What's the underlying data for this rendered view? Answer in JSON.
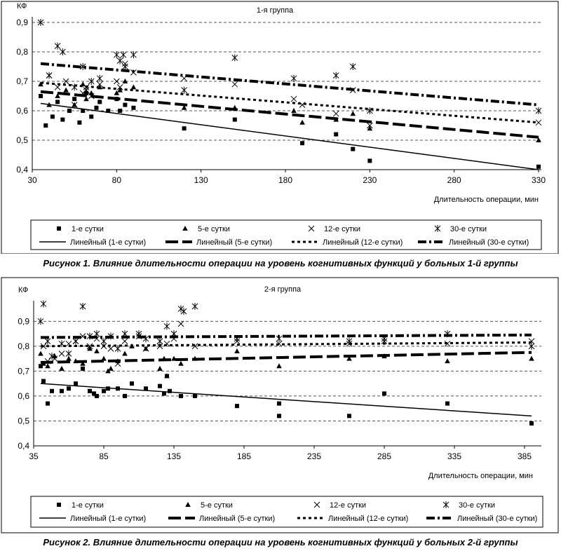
{
  "figures": [
    {
      "caption": "Рисунок 1. Влияние длительности операции на уровень когнитивных функций у больных 1-й группы"
    },
    {
      "caption": "Рисунок 2. Влияние длительности операции на уровень когнитивных функций у больных 2-й группы"
    }
  ],
  "chart_data": [
    {
      "type": "scatter",
      "title": "1-я группа",
      "ylabel": "КФ",
      "xlabel": "Длительность операции, мин",
      "xlim": [
        30,
        330
      ],
      "ylim": [
        0.4,
        0.9
      ],
      "xticks": [
        "30",
        "80",
        "130",
        "180",
        "230",
        "280",
        "330"
      ],
      "yticks": [
        "0,4",
        "0,5",
        "0,6",
        "0,7",
        "0,8",
        "0,9"
      ],
      "grid": "horizontal-dashed",
      "legend_position": "bottom",
      "series": [
        {
          "name": "1-е сутки",
          "marker": "square",
          "points": [
            [
              35,
              0.65
            ],
            [
              38,
              0.55
            ],
            [
              42,
              0.58
            ],
            [
              45,
              0.63
            ],
            [
              48,
              0.57
            ],
            [
              52,
              0.6
            ],
            [
              55,
              0.64
            ],
            [
              58,
              0.56
            ],
            [
              60,
              0.6
            ],
            [
              62,
              0.66
            ],
            [
              65,
              0.58
            ],
            [
              68,
              0.61
            ],
            [
              70,
              0.63
            ],
            [
              75,
              0.6
            ],
            [
              80,
              0.64
            ],
            [
              82,
              0.6
            ],
            [
              85,
              0.62
            ],
            [
              90,
              0.61
            ],
            [
              120,
              0.54
            ],
            [
              150,
              0.57
            ],
            [
              190,
              0.49
            ],
            [
              210,
              0.52
            ],
            [
              220,
              0.47
            ],
            [
              230,
              0.43
            ],
            [
              330,
              0.41
            ]
          ]
        },
        {
          "name": "5-е сутки",
          "marker": "triangle",
          "points": [
            [
              35,
              0.69
            ],
            [
              40,
              0.62
            ],
            [
              45,
              0.65
            ],
            [
              50,
              0.67
            ],
            [
              55,
              0.62
            ],
            [
              60,
              0.69
            ],
            [
              62,
              0.64
            ],
            [
              65,
              0.66
            ],
            [
              70,
              0.68
            ],
            [
              80,
              0.66
            ],
            [
              82,
              0.67
            ],
            [
              85,
              0.7
            ],
            [
              90,
              0.68
            ],
            [
              120,
              0.61
            ],
            [
              150,
              0.61
            ],
            [
              185,
              0.6
            ],
            [
              190,
              0.56
            ],
            [
              210,
              0.57
            ],
            [
              220,
              0.59
            ],
            [
              230,
              0.54
            ],
            [
              330,
              0.5
            ]
          ]
        },
        {
          "name": "12-е сутки",
          "marker": "x",
          "points": [
            [
              40,
              0.72
            ],
            [
              45,
              0.68
            ],
            [
              50,
              0.7
            ],
            [
              55,
              0.62
            ],
            [
              60,
              0.66
            ],
            [
              62,
              0.68
            ],
            [
              65,
              0.65
            ],
            [
              70,
              0.69
            ],
            [
              80,
              0.7
            ],
            [
              82,
              0.68
            ],
            [
              85,
              0.76
            ],
            [
              90,
              0.73
            ],
            [
              120,
              0.71
            ],
            [
              150,
              0.69
            ],
            [
              185,
              0.64
            ],
            [
              190,
              0.62
            ],
            [
              210,
              0.59
            ],
            [
              220,
              0.67
            ],
            [
              230,
              0.55
            ],
            [
              330,
              0.56
            ]
          ]
        },
        {
          "name": "30-е сутки",
          "marker": "asterisk",
          "points": [
            [
              35,
              0.9
            ],
            [
              40,
              0.72
            ],
            [
              45,
              0.82
            ],
            [
              48,
              0.8
            ],
            [
              55,
              0.68
            ],
            [
              60,
              0.75
            ],
            [
              62,
              0.67
            ],
            [
              65,
              0.7
            ],
            [
              70,
              0.71
            ],
            [
              80,
              0.79
            ],
            [
              82,
              0.77
            ],
            [
              84,
              0.79
            ],
            [
              85,
              0.75
            ],
            [
              90,
              0.79
            ],
            [
              120,
              0.67
            ],
            [
              150,
              0.78
            ],
            [
              185,
              0.71
            ],
            [
              210,
              0.72
            ],
            [
              220,
              0.75
            ],
            [
              230,
              0.6
            ],
            [
              330,
              0.6
            ]
          ]
        }
      ],
      "trendlines": [
        {
          "name": "Линейный (1-е сутки)",
          "style": "solid",
          "from": [
            35,
            0.625
          ],
          "to": [
            330,
            0.4
          ]
        },
        {
          "name": "Линейный (5-е сутки)",
          "style": "long-dash",
          "from": [
            35,
            0.665
          ],
          "to": [
            330,
            0.51
          ]
        },
        {
          "name": "Линейный (12-е сутки)",
          "style": "dotted",
          "from": [
            35,
            0.695
          ],
          "to": [
            330,
            0.56
          ]
        },
        {
          "name": "Линейный (30-е сутки)",
          "style": "dash-dot",
          "from": [
            35,
            0.76
          ],
          "to": [
            330,
            0.62
          ]
        }
      ]
    },
    {
      "type": "scatter",
      "title": "2-я группа",
      "ylabel": "КФ",
      "xlabel": "Длительность операции, мин",
      "xlim": [
        35,
        395
      ],
      "ylim": [
        0.4,
        0.96
      ],
      "xticks": [
        "35",
        "85",
        "135",
        "185",
        "235",
        "285",
        "335",
        "385"
      ],
      "yticks": [
        "0,4",
        "0,5",
        "0,6",
        "0,7",
        "0,8",
        "0,9"
      ],
      "grid": "horizontal-dashed",
      "legend_position": "bottom",
      "series": [
        {
          "name": "1-е сутки",
          "marker": "square",
          "points": [
            [
              40,
              0.72
            ],
            [
              42,
              0.66
            ],
            [
              45,
              0.57
            ],
            [
              48,
              0.62
            ],
            [
              55,
              0.62
            ],
            [
              60,
              0.63
            ],
            [
              65,
              0.65
            ],
            [
              70,
              0.71
            ],
            [
              75,
              0.62
            ],
            [
              78,
              0.61
            ],
            [
              80,
              0.6
            ],
            [
              85,
              0.62
            ],
            [
              88,
              0.63
            ],
            [
              95,
              0.63
            ],
            [
              100,
              0.6
            ],
            [
              105,
              0.65
            ],
            [
              115,
              0.63
            ],
            [
              125,
              0.64
            ],
            [
              128,
              0.61
            ],
            [
              130,
              0.68
            ],
            [
              132,
              0.62
            ],
            [
              140,
              0.6
            ],
            [
              150,
              0.6
            ],
            [
              180,
              0.56
            ],
            [
              210,
              0.57
            ],
            [
              210,
              0.52
            ],
            [
              260,
              0.52
            ],
            [
              285,
              0.61
            ],
            [
              330,
              0.57
            ],
            [
              390,
              0.49
            ]
          ]
        },
        {
          "name": "5-е сутки",
          "marker": "triangle",
          "points": [
            [
              40,
              0.77
            ],
            [
              42,
              0.73
            ],
            [
              45,
              0.72
            ],
            [
              50,
              0.76
            ],
            [
              55,
              0.71
            ],
            [
              60,
              0.75
            ],
            [
              65,
              0.74
            ],
            [
              70,
              0.73
            ],
            [
              75,
              0.79
            ],
            [
              80,
              0.78
            ],
            [
              85,
              0.75
            ],
            [
              88,
              0.7
            ],
            [
              90,
              0.71
            ],
            [
              95,
              0.74
            ],
            [
              100,
              0.77
            ],
            [
              105,
              0.8
            ],
            [
              115,
              0.79
            ],
            [
              125,
              0.71
            ],
            [
              128,
              0.75
            ],
            [
              130,
              0.68
            ],
            [
              135,
              0.75
            ],
            [
              140,
              0.73
            ],
            [
              150,
              0.75
            ],
            [
              180,
              0.78
            ],
            [
              210,
              0.72
            ],
            [
              260,
              0.75
            ],
            [
              285,
              0.76
            ],
            [
              330,
              0.74
            ],
            [
              390,
              0.75
            ]
          ]
        },
        {
          "name": "12-е сутки",
          "marker": "x",
          "points": [
            [
              42,
              0.8
            ],
            [
              45,
              0.74
            ],
            [
              50,
              0.75
            ],
            [
              55,
              0.77
            ],
            [
              60,
              0.81
            ],
            [
              65,
              0.82
            ],
            [
              70,
              0.84
            ],
            [
              75,
              0.8
            ],
            [
              80,
              0.83
            ],
            [
              85,
              0.8
            ],
            [
              90,
              0.79
            ],
            [
              95,
              0.73
            ],
            [
              100,
              0.82
            ],
            [
              110,
              0.84
            ],
            [
              115,
              0.79
            ],
            [
              125,
              0.8
            ],
            [
              130,
              0.81
            ],
            [
              135,
              0.83
            ],
            [
              140,
              0.89
            ],
            [
              150,
              0.8
            ],
            [
              180,
              0.82
            ],
            [
              210,
              0.81
            ],
            [
              260,
              0.81
            ],
            [
              285,
              0.82
            ],
            [
              330,
              0.81
            ],
            [
              390,
              0.82
            ]
          ]
        },
        {
          "name": "30-е сутки",
          "marker": "asterisk",
          "points": [
            [
              40,
              0.9
            ],
            [
              42,
              0.97
            ],
            [
              45,
              0.82
            ],
            [
              48,
              0.76
            ],
            [
              55,
              0.81
            ],
            [
              60,
              0.77
            ],
            [
              65,
              0.82
            ],
            [
              70,
              0.96
            ],
            [
              75,
              0.84
            ],
            [
              80,
              0.85
            ],
            [
              85,
              0.82
            ],
            [
              90,
              0.84
            ],
            [
              95,
              0.79
            ],
            [
              100,
              0.85
            ],
            [
              110,
              0.85
            ],
            [
              115,
              0.83
            ],
            [
              125,
              0.82
            ],
            [
              130,
              0.88
            ],
            [
              135,
              0.85
            ],
            [
              140,
              0.95
            ],
            [
              142,
              0.94
            ],
            [
              150,
              0.96
            ],
            [
              180,
              0.83
            ],
            [
              210,
              0.83
            ],
            [
              260,
              0.82
            ],
            [
              285,
              0.83
            ],
            [
              330,
              0.85
            ],
            [
              390,
              0.8
            ]
          ]
        }
      ],
      "trendlines": [
        {
          "name": "Линейный (1-е сутки)",
          "style": "solid",
          "from": [
            40,
            0.65
          ],
          "to": [
            390,
            0.52
          ]
        },
        {
          "name": "Линейный (5-е сутки)",
          "style": "long-dash",
          "from": [
            40,
            0.735
          ],
          "to": [
            390,
            0.775
          ]
        },
        {
          "name": "Линейный (12-е сутки)",
          "style": "dotted",
          "from": [
            40,
            0.8
          ],
          "to": [
            390,
            0.815
          ]
        },
        {
          "name": "Линейный (30-е сутки)",
          "style": "dash-dot",
          "from": [
            40,
            0.835
          ],
          "to": [
            390,
            0.845
          ]
        }
      ]
    }
  ]
}
